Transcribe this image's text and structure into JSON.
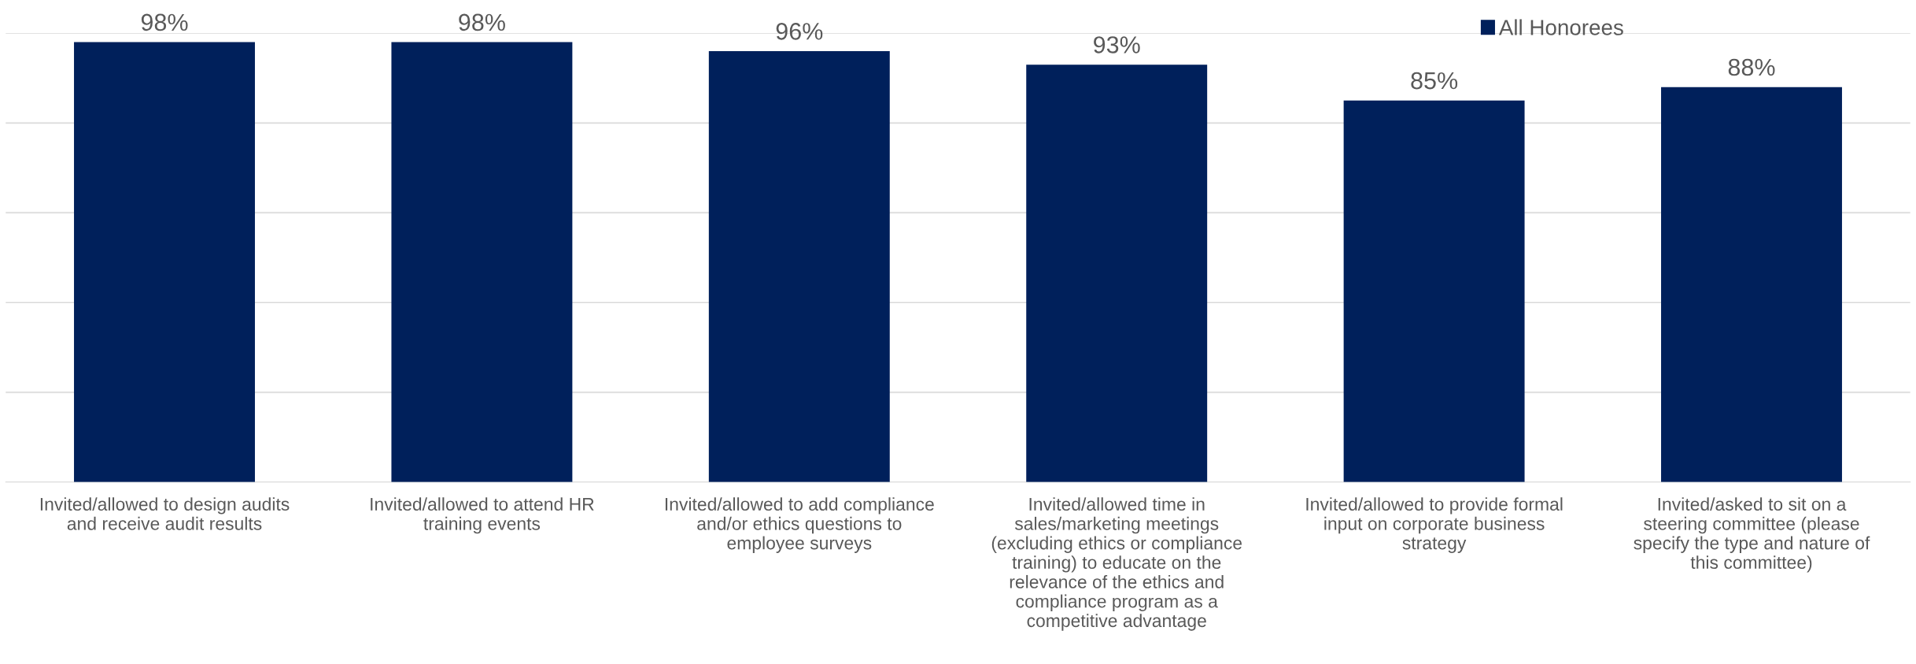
{
  "chart_data": {
    "type": "bar",
    "categories": [
      "Invited/allowed to design audits and receive audit results",
      "Invited/allowed to attend HR training events",
      "Invited/allowed to add compliance and/or ethics questions to employee surveys",
      "Invited/allowed time in sales/marketing meetings (excluding ethics or compliance training) to educate on the relevance of the ethics and compliance program as a competitive advantage",
      "Invited/allowed to provide formal input on corporate business strategy",
      "Invited/asked to sit on a steering committee (please specify the type and nature of this committee)"
    ],
    "series": [
      {
        "name": "All Honorees",
        "color": "#00205b",
        "values": [
          98,
          98,
          96,
          93,
          85,
          88
        ],
        "value_labels": [
          "98%",
          "98%",
          "96%",
          "93%",
          "85%",
          "88%"
        ]
      }
    ],
    "ylim": [
      0,
      100
    ],
    "yticks": [
      {
        "value": 0,
        "label": null
      },
      {
        "value": 20,
        "label": null
      },
      {
        "value": 40,
        "label": null
      },
      {
        "value": 60,
        "label": null
      },
      {
        "value": 80,
        "label": null
      },
      {
        "value": 100,
        "label": null
      }
    ],
    "tick_labels": "x",
    "grid": "y",
    "legend": "top right"
  }
}
